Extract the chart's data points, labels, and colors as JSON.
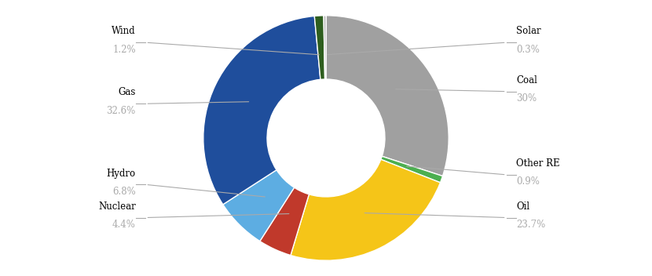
{
  "labels": [
    "Coal",
    "Other RE",
    "Oil",
    "Nuclear",
    "Hydro",
    "Gas",
    "Wind",
    "Solar"
  ],
  "values": [
    30.0,
    0.9,
    23.7,
    4.4,
    6.8,
    32.6,
    1.2,
    0.3
  ],
  "colors": [
    "#a0a0a0",
    "#4caf50",
    "#f5c518",
    "#c0392b",
    "#5dade2",
    "#1f4e9c",
    "#2e5e1e",
    "#b0b0b0"
  ],
  "label_names": [
    "Coal",
    "Other RE",
    "Oil",
    "Nuclear",
    "Hydro",
    "Gas",
    "Wind",
    "Solar"
  ],
  "label_pcts": [
    "30%",
    "0.9%",
    "23.7%",
    "4.4%",
    "6.8%",
    "32.6%",
    "1.2%",
    "0.3%"
  ],
  "background_color": "#ffffff",
  "label_color_main": "#000000",
  "label_color_pct": "#a0a0a0",
  "wedge_edge_color": "#ffffff"
}
